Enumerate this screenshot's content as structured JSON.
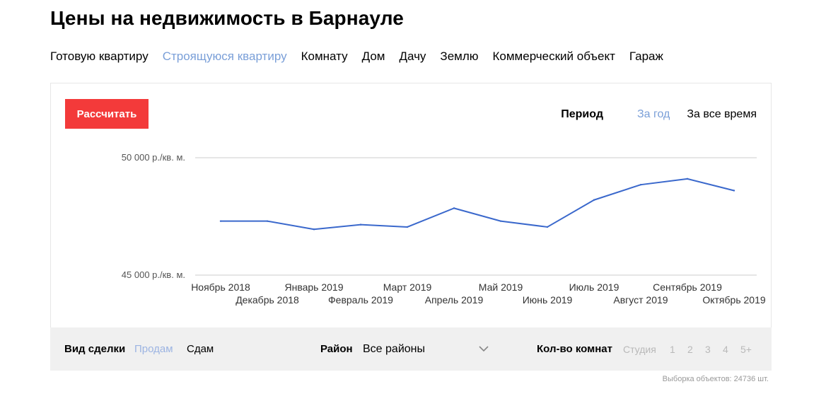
{
  "page": {
    "title": "Цены на недвижимость в Барнауле"
  },
  "property_types": [
    {
      "label": "Готовую квартиру",
      "active": false
    },
    {
      "label": "Строящуюся квартиру",
      "active": true
    },
    {
      "label": "Комнату",
      "active": false
    },
    {
      "label": "Дом",
      "active": false
    },
    {
      "label": "Дачу",
      "active": false
    },
    {
      "label": "Землю",
      "active": false
    },
    {
      "label": "Коммерческий объект",
      "active": false
    },
    {
      "label": "Гараж",
      "active": false
    }
  ],
  "calculate_label": "Рассчитать",
  "period": {
    "label": "Период",
    "options": [
      {
        "label": "За год",
        "active": true
      },
      {
        "label": "За все время",
        "active": false
      }
    ]
  },
  "chart_data": {
    "type": "line",
    "x": [
      "Ноябрь 2018",
      "Декабрь 2018",
      "Январь 2019",
      "Февраль 2019",
      "Март 2019",
      "Апрель 2019",
      "Май 2019",
      "Июнь 2019",
      "Июль 2019",
      "Август 2019",
      "Сентябрь 2019",
      "Октябрь 2019"
    ],
    "series": [
      {
        "values": [
          47300,
          47300,
          46950,
          47150,
          47050,
          47850,
          47300,
          47050,
          48200,
          48850,
          49100,
          48600
        ]
      }
    ],
    "ylim": [
      45000,
      50000
    ],
    "yticks": [
      45000,
      50000
    ],
    "ytick_labels": [
      "45 000 р./кв. м.",
      "50 000 р./кв. м."
    ],
    "grid": true,
    "line_color": "#3a68cc",
    "grid_color": "#cccccc"
  },
  "filters": {
    "deal": {
      "label": "Вид сделки",
      "options": [
        {
          "label": "Продам",
          "active": true
        },
        {
          "label": "Сдам",
          "active": false
        }
      ]
    },
    "district": {
      "label": "Район",
      "value": "Все районы"
    },
    "rooms": {
      "label": "Кол-во комнат",
      "options": [
        "Студия",
        "1",
        "2",
        "3",
        "4",
        "5+"
      ]
    }
  },
  "footnote": "Выборка объектов: 24736 шт.",
  "colors": {
    "accent": "#f33a3a",
    "link_active": "#7a9fd8",
    "filter_bg": "#f0f0f0"
  }
}
